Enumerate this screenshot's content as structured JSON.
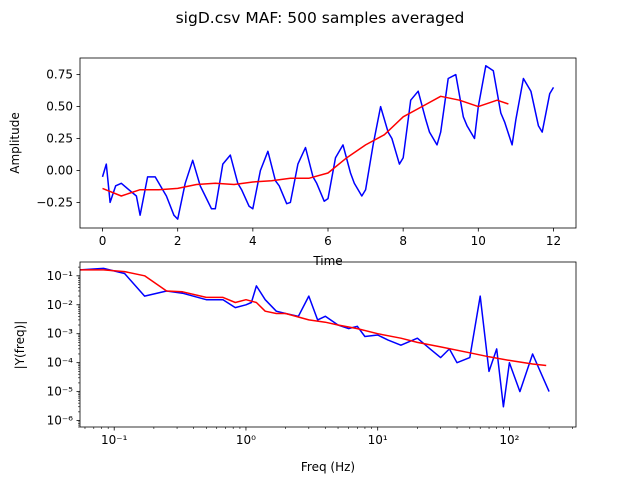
{
  "figure": {
    "title": "sigD.csv MAF: 500 samples averaged"
  },
  "chart_data": [
    {
      "type": "line",
      "xlabel": "Time",
      "ylabel": "Amplitude",
      "xlim": [
        -0.6,
        12.6
      ],
      "ylim": [
        -0.45,
        0.88
      ],
      "xticks": [
        0,
        2,
        4,
        6,
        8,
        10,
        12
      ],
      "xtick_labels": [
        "0",
        "2",
        "4",
        "6",
        "8",
        "10",
        "12"
      ],
      "yticks": [
        -0.25,
        0.0,
        0.25,
        0.5,
        0.75
      ],
      "ytick_labels": [
        "−0.25",
        "0.00",
        "0.25",
        "0.50",
        "0.75"
      ],
      "grid": false,
      "series": [
        {
          "color": "#0000ff",
          "x": [
            0.0,
            0.1,
            0.2,
            0.35,
            0.5,
            0.7,
            0.9,
            1.0,
            1.2,
            1.4,
            1.6,
            1.7,
            1.9,
            2.0,
            2.2,
            2.4,
            2.6,
            2.7,
            2.9,
            3.0,
            3.2,
            3.4,
            3.6,
            3.7,
            3.9,
            4.0,
            4.2,
            4.4,
            4.6,
            4.7,
            4.9,
            5.0,
            5.2,
            5.4,
            5.6,
            5.7,
            5.9,
            6.0,
            6.2,
            6.4,
            6.6,
            6.7,
            6.9,
            7.0,
            7.2,
            7.4,
            7.6,
            7.7,
            7.9,
            8.0,
            8.2,
            8.4,
            8.6,
            8.7,
            8.9,
            9.0,
            9.2,
            9.4,
            9.6,
            9.7,
            9.9,
            10.0,
            10.2,
            10.4,
            10.6,
            10.7,
            10.9,
            11.0,
            11.2,
            11.4,
            11.6,
            11.7,
            11.9,
            12.0
          ],
          "y": [
            -0.05,
            0.05,
            -0.25,
            -0.12,
            -0.1,
            -0.15,
            -0.2,
            -0.35,
            -0.05,
            -0.05,
            -0.15,
            -0.2,
            -0.35,
            -0.38,
            -0.1,
            0.08,
            -0.12,
            -0.18,
            -0.3,
            -0.3,
            0.05,
            0.12,
            -0.1,
            -0.15,
            -0.28,
            -0.3,
            0.0,
            0.15,
            -0.08,
            -0.12,
            -0.26,
            -0.25,
            0.05,
            0.18,
            -0.05,
            -0.1,
            -0.24,
            -0.22,
            0.1,
            0.2,
            -0.02,
            -0.1,
            -0.2,
            -0.15,
            0.2,
            0.5,
            0.3,
            0.25,
            0.05,
            0.1,
            0.55,
            0.62,
            0.4,
            0.3,
            0.2,
            0.3,
            0.72,
            0.75,
            0.42,
            0.35,
            0.25,
            0.5,
            0.82,
            0.78,
            0.45,
            0.38,
            0.2,
            0.4,
            0.72,
            0.62,
            0.35,
            0.3,
            0.6,
            0.65
          ]
        },
        {
          "color": "#ff0000",
          "x": [
            0.0,
            0.5,
            1.0,
            1.5,
            2.0,
            2.5,
            3.0,
            3.5,
            4.0,
            4.5,
            5.0,
            5.5,
            6.0,
            6.5,
            7.0,
            7.5,
            8.0,
            8.5,
            9.0,
            9.5,
            10.0,
            10.5,
            10.8
          ],
          "y": [
            -0.14,
            -0.2,
            -0.15,
            -0.15,
            -0.14,
            -0.11,
            -0.1,
            -0.11,
            -0.09,
            -0.08,
            -0.06,
            -0.06,
            -0.02,
            0.1,
            0.2,
            0.28,
            0.42,
            0.5,
            0.58,
            0.55,
            0.5,
            0.55,
            0.52
          ]
        }
      ]
    },
    {
      "type": "line",
      "xlabel": "Freq (Hz)",
      "ylabel": "|Y(freq)|",
      "xscale": "log",
      "yscale": "log",
      "xlim": [
        0.055,
        320
      ],
      "ylim": [
        6e-07,
        0.3
      ],
      "xticks": [
        0.1,
        1,
        10,
        100
      ],
      "xtick_labels": [
        "10⁻¹",
        "10⁰",
        "10¹",
        "10²"
      ],
      "yticks": [
        1e-06,
        1e-05,
        0.0001,
        0.001,
        0.01,
        0.1
      ],
      "ytick_labels": [
        "10⁻⁶",
        "10⁻⁵",
        "10⁻⁴",
        "10⁻³",
        "10⁻²",
        "10⁻¹"
      ],
      "grid": false,
      "series": [
        {
          "color": "#0000ff",
          "x": [
            0.055,
            0.083,
            0.12,
            0.17,
            0.25,
            0.33,
            0.5,
            0.67,
            0.83,
            1.0,
            1.1,
            1.2,
            1.4,
            1.7,
            2.0,
            2.5,
            3.0,
            3.5,
            4.0,
            5.0,
            6.0,
            7.0,
            8.0,
            10.0,
            12.0,
            15.0,
            20.0,
            25.0,
            30.0,
            35.0,
            40.0,
            50.0,
            60.0,
            70.0,
            80.0,
            90.0,
            100.0,
            120.0,
            150.0,
            200.0
          ],
          "y": [
            0.16,
            0.18,
            0.12,
            0.02,
            0.03,
            0.025,
            0.015,
            0.015,
            0.008,
            0.01,
            0.012,
            0.045,
            0.015,
            0.006,
            0.005,
            0.004,
            0.02,
            0.003,
            0.004,
            0.002,
            0.0015,
            0.0018,
            0.0008,
            0.0009,
            0.0006,
            0.0004,
            0.0007,
            0.0003,
            0.00015,
            0.0003,
            0.0001,
            0.00015,
            0.02,
            5e-05,
            0.0003,
            3e-06,
            0.0001,
            1e-05,
            0.0002,
            1e-05
          ]
        },
        {
          "color": "#ff0000",
          "x": [
            0.055,
            0.083,
            0.12,
            0.17,
            0.25,
            0.33,
            0.5,
            0.67,
            0.83,
            1.0,
            1.2,
            1.4,
            1.7,
            2.0,
            3.0,
            4.0,
            5.0,
            7.0,
            10.0,
            15.0,
            20.0,
            30.0,
            50.0,
            70.0,
            100.0,
            150.0,
            190.0
          ],
          "y": [
            0.16,
            0.16,
            0.14,
            0.1,
            0.03,
            0.028,
            0.018,
            0.018,
            0.012,
            0.015,
            0.012,
            0.006,
            0.005,
            0.005,
            0.003,
            0.0025,
            0.002,
            0.0015,
            0.001,
            0.0007,
            0.0005,
            0.00035,
            0.00022,
            0.00016,
            0.00012,
            9e-05,
            8e-05
          ]
        }
      ]
    }
  ]
}
